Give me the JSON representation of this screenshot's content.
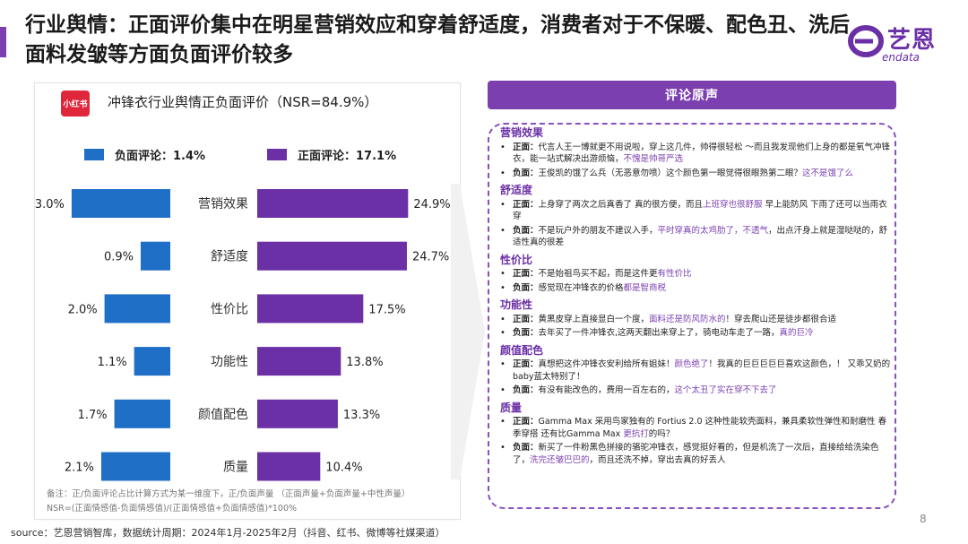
{
  "header": {
    "title": "行业舆情：正面评价集中在明星营销效应和穿着舒适度，消费者对于不保暖、配色丑、洗后面料发皱等方面负面评价较多",
    "logo_text": "艺恩",
    "logo_sub": "endata"
  },
  "chart_data": {
    "type": "bar",
    "title": "冲锋衣行业舆情正负面评价（NSR=84.9%）",
    "categories": [
      "营销效果",
      "舒适度",
      "性价比",
      "功能性",
      "颜值配色",
      "质量"
    ],
    "series": [
      {
        "name": "负面评论：1.4%",
        "values": [
          3.0,
          0.9,
          2.0,
          1.1,
          1.7,
          2.1
        ],
        "labels": [
          "3.0%",
          "0.9%",
          "2.0%",
          "1.1%",
          "1.7%",
          "2.1%"
        ],
        "color": "#1f6fc6"
      },
      {
        "name": "正面评论：17.1%",
        "values": [
          24.9,
          24.7,
          17.5,
          13.8,
          13.3,
          10.4
        ],
        "labels": [
          "24.9%",
          "24.7%",
          "17.5%",
          "13.8%",
          "13.3%",
          "10.4%"
        ],
        "color": "#6b2fa6"
      }
    ],
    "badge": "小红书"
  },
  "notes": {
    "line1": "备注：正/负面评论占比计算方式为某一维度下，正/负面声量    （正面声量+负面声量+中性声量）",
    "line2": "NSR=(正面情感值-负面情感值)/(正面情感值+负面情感值)*100%"
  },
  "source": "source：艺恩营销智库，数据统计周期：2024年1月-2025年2月（抖音、红书、微博等社媒渠道）",
  "page_number": "8",
  "reviews": {
    "header": "评论原声",
    "categories": [
      {
        "name": "营销效果",
        "items": [
          {
            "label": "正面：",
            "text": "代言人王一博就更不用说啦，穿上这几件，帅得很轻松   ～而且我发现他们上身的都是氧气冲锋衣，能一站式解决出游烦恼，",
            "highlight": "不愧是帅哥严选",
            "tail": ""
          },
          {
            "label": "负面：",
            "text": "王俊凯的饿了么兵（无恶意勿喷）这个颜色第一眼觉得很眼熟第二眼？",
            "highlight": "这不是饿了么",
            "tail": ""
          }
        ]
      },
      {
        "name": "舒适度",
        "items": [
          {
            "label": "正面：",
            "text": "上身穿了两次之后真香了 真的很方便，而且",
            "highlight": "上班穿也很舒服",
            "tail": " 早上能防风 下雨了还可以当雨衣穿"
          },
          {
            "label": "负面：",
            "text": "不是玩户外的朋友不建议入手，",
            "highlight": "平时穿真的太鸡肋了，不透气",
            "tail": "，出点汗身上就是湿哒哒的，舒适性真的很差"
          }
        ]
      },
      {
        "name": "性价比",
        "items": [
          {
            "label": "正面：",
            "text": "不是始祖鸟买不起，而是这件更",
            "highlight": "有性价比",
            "tail": ""
          },
          {
            "label": "负面：",
            "text": "感觉现在冲锋衣的价格",
            "highlight": "都是智商税",
            "tail": ""
          }
        ]
      },
      {
        "name": "功能性",
        "items": [
          {
            "label": "正面：",
            "text": "黄黑皮穿上直接显白一个度，",
            "highlight": "面料还是防风防水的",
            "tail": "！穿去爬山还是徒步都很合适"
          },
          {
            "label": "负面：",
            "text": "去年买了一件冲锋衣,这两天翻出来穿上了，骑电动车走了一路，",
            "highlight": "真的巨冷",
            "tail": ""
          }
        ]
      },
      {
        "name": "颜值配色",
        "items": [
          {
            "label": "正面：",
            "text": "真想把这件冲锋衣安利给所有姐妹！",
            "highlight": "颜色绝了",
            "tail": "！我真的巨巨巨巨巨喜欢这颜色，！ 又乖又奶的baby蓝太特别了！"
          },
          {
            "label": "负面：",
            "text": "有没有能改色的，费用一百左右的，",
            "highlight": "这个太丑了实在穿不下去了",
            "tail": ""
          }
        ]
      },
      {
        "name": "质量",
        "items": [
          {
            "label": "正面：",
            "text": "Gamma Max 采用鸟家独有的 Fortius 2.0 这种性能软壳面料，兼具柔软性弹性和耐磨性 春季穿搭 还有比Gamma Max ",
            "highlight": "更抗打",
            "tail": "的吗？"
          },
          {
            "label": "负面：",
            "text": "新买了一件粉黑色拼接的骆驼冲锋衣，感觉挺好看的，但是机洗了一次后，直接给给洗染色了，",
            "highlight": "洗完还皱巴巴的",
            "tail": "，而且还洗不掉，穿出去真的好丢人"
          }
        ]
      }
    ]
  }
}
